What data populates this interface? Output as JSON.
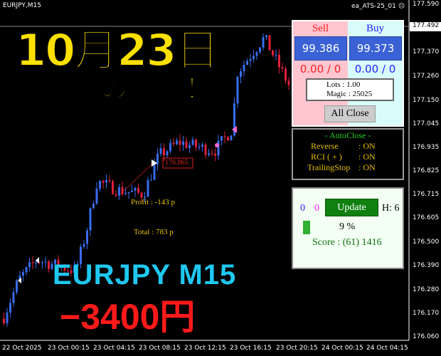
{
  "chart": {
    "symbol": "EURJPY,M15",
    "ea_name": "ea_ATS-25_01",
    "ea_icon": "frown-face-icon",
    "price_labels": [
      "177.590",
      "177.492",
      "177.370",
      "177.260",
      "177.150",
      "177.045",
      "176.935",
      "176.825",
      "176.715",
      "176.605",
      "176.500",
      "176.390",
      "176.280",
      "176.170",
      "176.060"
    ],
    "current_price": "177.492",
    "time_labels": [
      "22 Oct 2025",
      "23 Oct 00:15",
      "23 Oct 04:15",
      "23 Oct 08:15",
      "23 Oct 12:15",
      "23 Oct 16:15",
      "23 Oct 20:15",
      "24 Oct 00:15",
      "24 Oct 04:15"
    ],
    "trade_price_label": "176.865",
    "profit_label": "Profit : -143 p",
    "total_label": "Total : 783 p",
    "bull_color": "#3a6cf0",
    "bear_color": "#e0203a"
  },
  "overlay": {
    "date": "10月23日",
    "result": "の結果！",
    "pair": "EURJPY  M15",
    "amount": "−3400円"
  },
  "trade_panel": {
    "sell_label": "Sell",
    "buy_label": "Buy",
    "sell_price": "99.386",
    "buy_price": "99.373",
    "sell_pos": "0.00 / 0",
    "buy_pos": "0.00 / 0",
    "lots": "Lots   : 1.00",
    "magic": "Magic : 25025",
    "all_close": "All Close"
  },
  "autoclose": {
    "title": "- AutoClose -",
    "rows": [
      {
        "k": "Reverse",
        "v": ": ON"
      },
      {
        "k": "RCI  ( + )",
        "v": ": ON"
      },
      {
        "k": "TrailingStop",
        "v": ": ON"
      }
    ]
  },
  "score_panel": {
    "count_blue": "0",
    "count_magenta": "0",
    "update": "Update",
    "h": "H: 6",
    "percent": "9 %",
    "progress": 9,
    "score": "Score : (61) 1416"
  }
}
